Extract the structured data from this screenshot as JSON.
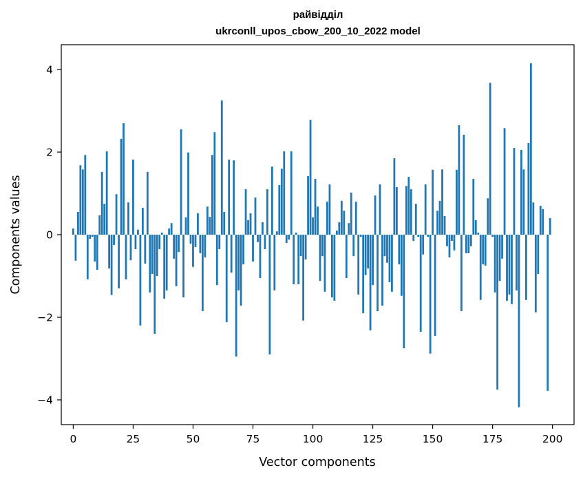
{
  "chart_data": {
    "type": "bar",
    "title": "райвідділ",
    "subtitle": "ukrconll_upos_cbow_200_10_2022 model",
    "xlabel": "Vector components",
    "ylabel": "Components values",
    "xlim": [
      -5,
      209
    ],
    "ylim": [
      -4.6,
      4.6
    ],
    "x_ticks": [
      0,
      25,
      50,
      75,
      100,
      125,
      150,
      175,
      200
    ],
    "x_tick_labels": [
      "0",
      "25",
      "50",
      "75",
      "100",
      "125",
      "150",
      "175",
      "200"
    ],
    "y_ticks": [
      -4,
      -2,
      0,
      2,
      4
    ],
    "y_tick_labels": [
      "−4",
      "−2",
      "0",
      "2",
      "4"
    ],
    "grid": false,
    "legend": "none",
    "bar_color": "#1f77b4",
    "x": [
      0,
      1,
      2,
      3,
      4,
      5,
      6,
      7,
      8,
      9,
      10,
      11,
      12,
      13,
      14,
      15,
      16,
      17,
      18,
      19,
      20,
      21,
      22,
      23,
      24,
      25,
      26,
      27,
      28,
      29,
      30,
      31,
      32,
      33,
      34,
      35,
      36,
      37,
      38,
      39,
      40,
      41,
      42,
      43,
      44,
      45,
      46,
      47,
      48,
      49,
      50,
      51,
      52,
      53,
      54,
      55,
      56,
      57,
      58,
      59,
      60,
      61,
      62,
      63,
      64,
      65,
      66,
      67,
      68,
      69,
      70,
      71,
      72,
      73,
      74,
      75,
      76,
      77,
      78,
      79,
      80,
      81,
      82,
      83,
      84,
      85,
      86,
      87,
      88,
      89,
      90,
      91,
      92,
      93,
      94,
      95,
      96,
      97,
      98,
      99,
      100,
      101,
      102,
      103,
      104,
      105,
      106,
      107,
      108,
      109,
      110,
      111,
      112,
      113,
      114,
      115,
      116,
      117,
      118,
      119,
      120,
      121,
      122,
      123,
      124,
      125,
      126,
      127,
      128,
      129,
      130,
      131,
      132,
      133,
      134,
      135,
      136,
      137,
      138,
      139,
      140,
      141,
      142,
      143,
      144,
      145,
      146,
      147,
      148,
      149,
      150,
      151,
      152,
      153,
      154,
      155,
      156,
      157,
      158,
      159,
      160,
      161,
      162,
      163,
      164,
      165,
      166,
      167,
      168,
      169,
      170,
      171,
      172,
      173,
      174,
      175,
      176,
      177,
      178,
      179,
      180,
      181,
      182,
      183,
      184,
      185,
      186,
      187,
      188,
      189,
      190,
      191,
      192,
      193,
      194,
      195,
      196,
      197,
      198,
      199
    ],
    "values": [
      0.15,
      -0.63,
      0.55,
      1.68,
      1.58,
      1.93,
      -1.08,
      -0.1,
      -0.05,
      -0.65,
      -0.85,
      0.47,
      1.52,
      0.75,
      2.02,
      -0.82,
      -1.46,
      -0.25,
      0.98,
      -1.3,
      2.32,
      2.7,
      -1.08,
      0.78,
      -0.62,
      1.82,
      -0.35,
      0.12,
      -2.2,
      0.65,
      -0.7,
      1.52,
      -1.4,
      -0.95,
      -2.4,
      -1.0,
      -0.35,
      0.05,
      -1.55,
      -1.35,
      0.15,
      0.28,
      -0.58,
      -1.25,
      -0.42,
      2.55,
      -1.52,
      0.42,
      1.99,
      -0.22,
      -0.78,
      -0.3,
      0.52,
      -0.45,
      -1.85,
      -0.55,
      0.68,
      0.43,
      1.93,
      2.48,
      -1.22,
      -0.35,
      3.25,
      0.55,
      -2.12,
      1.82,
      -0.92,
      1.8,
      -2.95,
      -1.35,
      -1.72,
      -0.72,
      1.1,
      0.35,
      0.52,
      -0.65,
      0.9,
      -0.18,
      -1.05,
      0.3,
      -0.35,
      1.1,
      -2.9,
      1.65,
      -1.35,
      0.08,
      1.2,
      1.6,
      2.02,
      -0.2,
      -0.12,
      2.02,
      -1.2,
      0.05,
      -1.2,
      -0.52,
      -2.08,
      -0.6,
      1.42,
      2.78,
      0.42,
      1.35,
      0.68,
      -1.12,
      -0.52,
      -1.38,
      0.8,
      1.22,
      -1.52,
      -1.6,
      0.1,
      0.3,
      0.82,
      0.58,
      -1.05,
      0.28,
      1.02,
      -0.52,
      0.8,
      -1.45,
      -0.05,
      -1.9,
      -0.98,
      -0.82,
      -2.32,
      -1.22,
      0.95,
      -1.85,
      1.22,
      -1.72,
      -0.52,
      -0.68,
      -1.15,
      -1.38,
      1.85,
      1.15,
      -0.72,
      -1.48,
      -2.75,
      1.18,
      1.4,
      1.1,
      -0.15,
      0.75,
      -0.05,
      -2.35,
      -0.48,
      1.22,
      -0.05,
      -2.88,
      1.57,
      -2.45,
      0.58,
      0.82,
      1.58,
      0.45,
      -0.28,
      -0.55,
      -0.15,
      -0.38,
      1.57,
      2.65,
      -1.85,
      2.42,
      -0.45,
      -0.45,
      -0.28,
      1.35,
      0.35,
      0.05,
      -1.58,
      -0.72,
      -0.75,
      0.88,
      3.68,
      -0.05,
      -1.4,
      -3.75,
      -1.12,
      -0.58,
      2.58,
      -1.6,
      -1.45,
      -1.68,
      2.1,
      -1.35,
      -4.18,
      2.05,
      1.58,
      -1.58,
      2.22,
      4.15,
      0.78,
      -1.88,
      -0.95,
      0.7,
      0.62,
      0.0,
      -3.78,
      0.4
    ]
  }
}
